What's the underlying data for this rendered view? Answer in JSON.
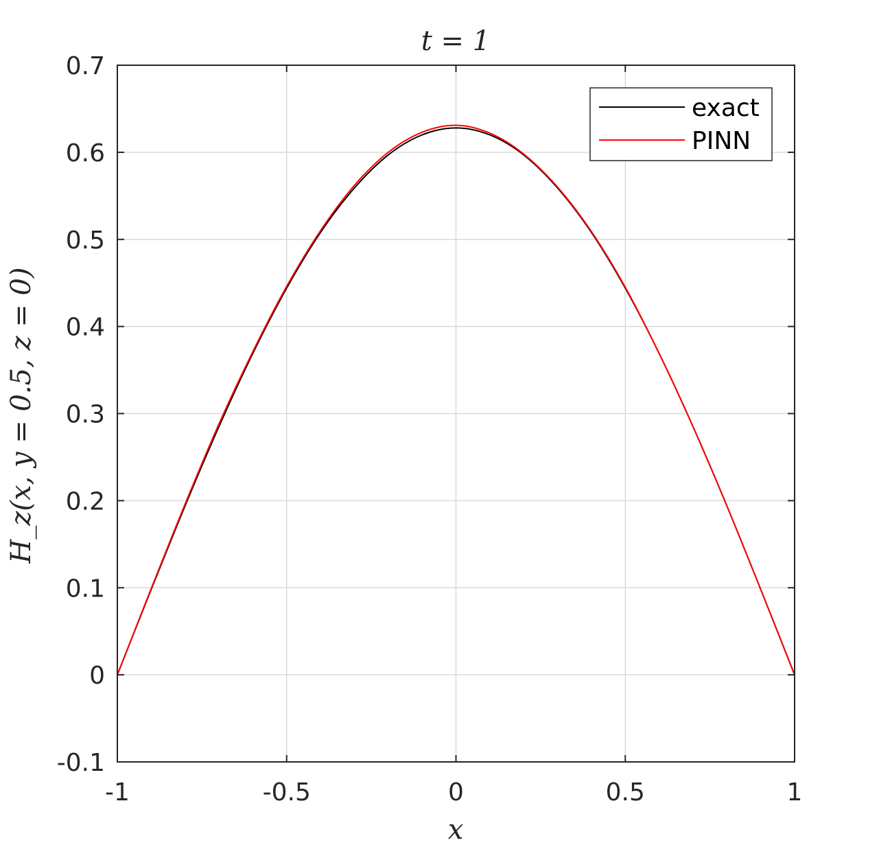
{
  "chart_data": {
    "type": "line",
    "title": "t = 1",
    "xlabel": "x",
    "ylabel": "H_z(x, y = 0.5, z = 0)",
    "xlim": [
      -1,
      1
    ],
    "ylim": [
      -0.1,
      0.7
    ],
    "xticks": [
      -1,
      -0.5,
      0,
      0.5,
      1
    ],
    "xtick_labels": [
      "-1",
      "-0.5",
      "0",
      "0.5",
      "1"
    ],
    "yticks": [
      -0.1,
      0,
      0.1,
      0.2,
      0.3,
      0.4,
      0.5,
      0.6,
      0.7
    ],
    "ytick_labels": [
      "-0.1",
      "0",
      "0.1",
      "0.2",
      "0.3",
      "0.4",
      "0.5",
      "0.6",
      "0.7"
    ],
    "grid": true,
    "legend_position": "top-right",
    "series": [
      {
        "name": "exact",
        "color": "#000000",
        "x": [
          -1,
          -0.9,
          -0.8,
          -0.7,
          -0.6,
          -0.5,
          -0.4,
          -0.3,
          -0.2,
          -0.1,
          0,
          0.1,
          0.2,
          0.3,
          0.4,
          0.5,
          0.6,
          0.7,
          0.8,
          0.9,
          1
        ],
        "y": [
          0,
          0.098,
          0.194,
          0.285,
          0.369,
          0.444,
          0.508,
          0.559,
          0.597,
          0.62,
          0.628,
          0.62,
          0.597,
          0.559,
          0.508,
          0.444,
          0.369,
          0.285,
          0.194,
          0.098,
          0
        ]
      },
      {
        "name": "PINN",
        "color": "#ff0000",
        "x": [
          -1,
          -0.9,
          -0.8,
          -0.7,
          -0.6,
          -0.5,
          -0.4,
          -0.3,
          -0.2,
          -0.1,
          0,
          0.1,
          0.2,
          0.3,
          0.4,
          0.5,
          0.6,
          0.7,
          0.8,
          0.9,
          1
        ],
        "y": [
          0,
          0.099,
          0.196,
          0.288,
          0.371,
          0.446,
          0.51,
          0.562,
          0.6,
          0.623,
          0.631,
          0.622,
          0.598,
          0.56,
          0.509,
          0.445,
          0.369,
          0.285,
          0.194,
          0.098,
          0
        ]
      }
    ]
  }
}
